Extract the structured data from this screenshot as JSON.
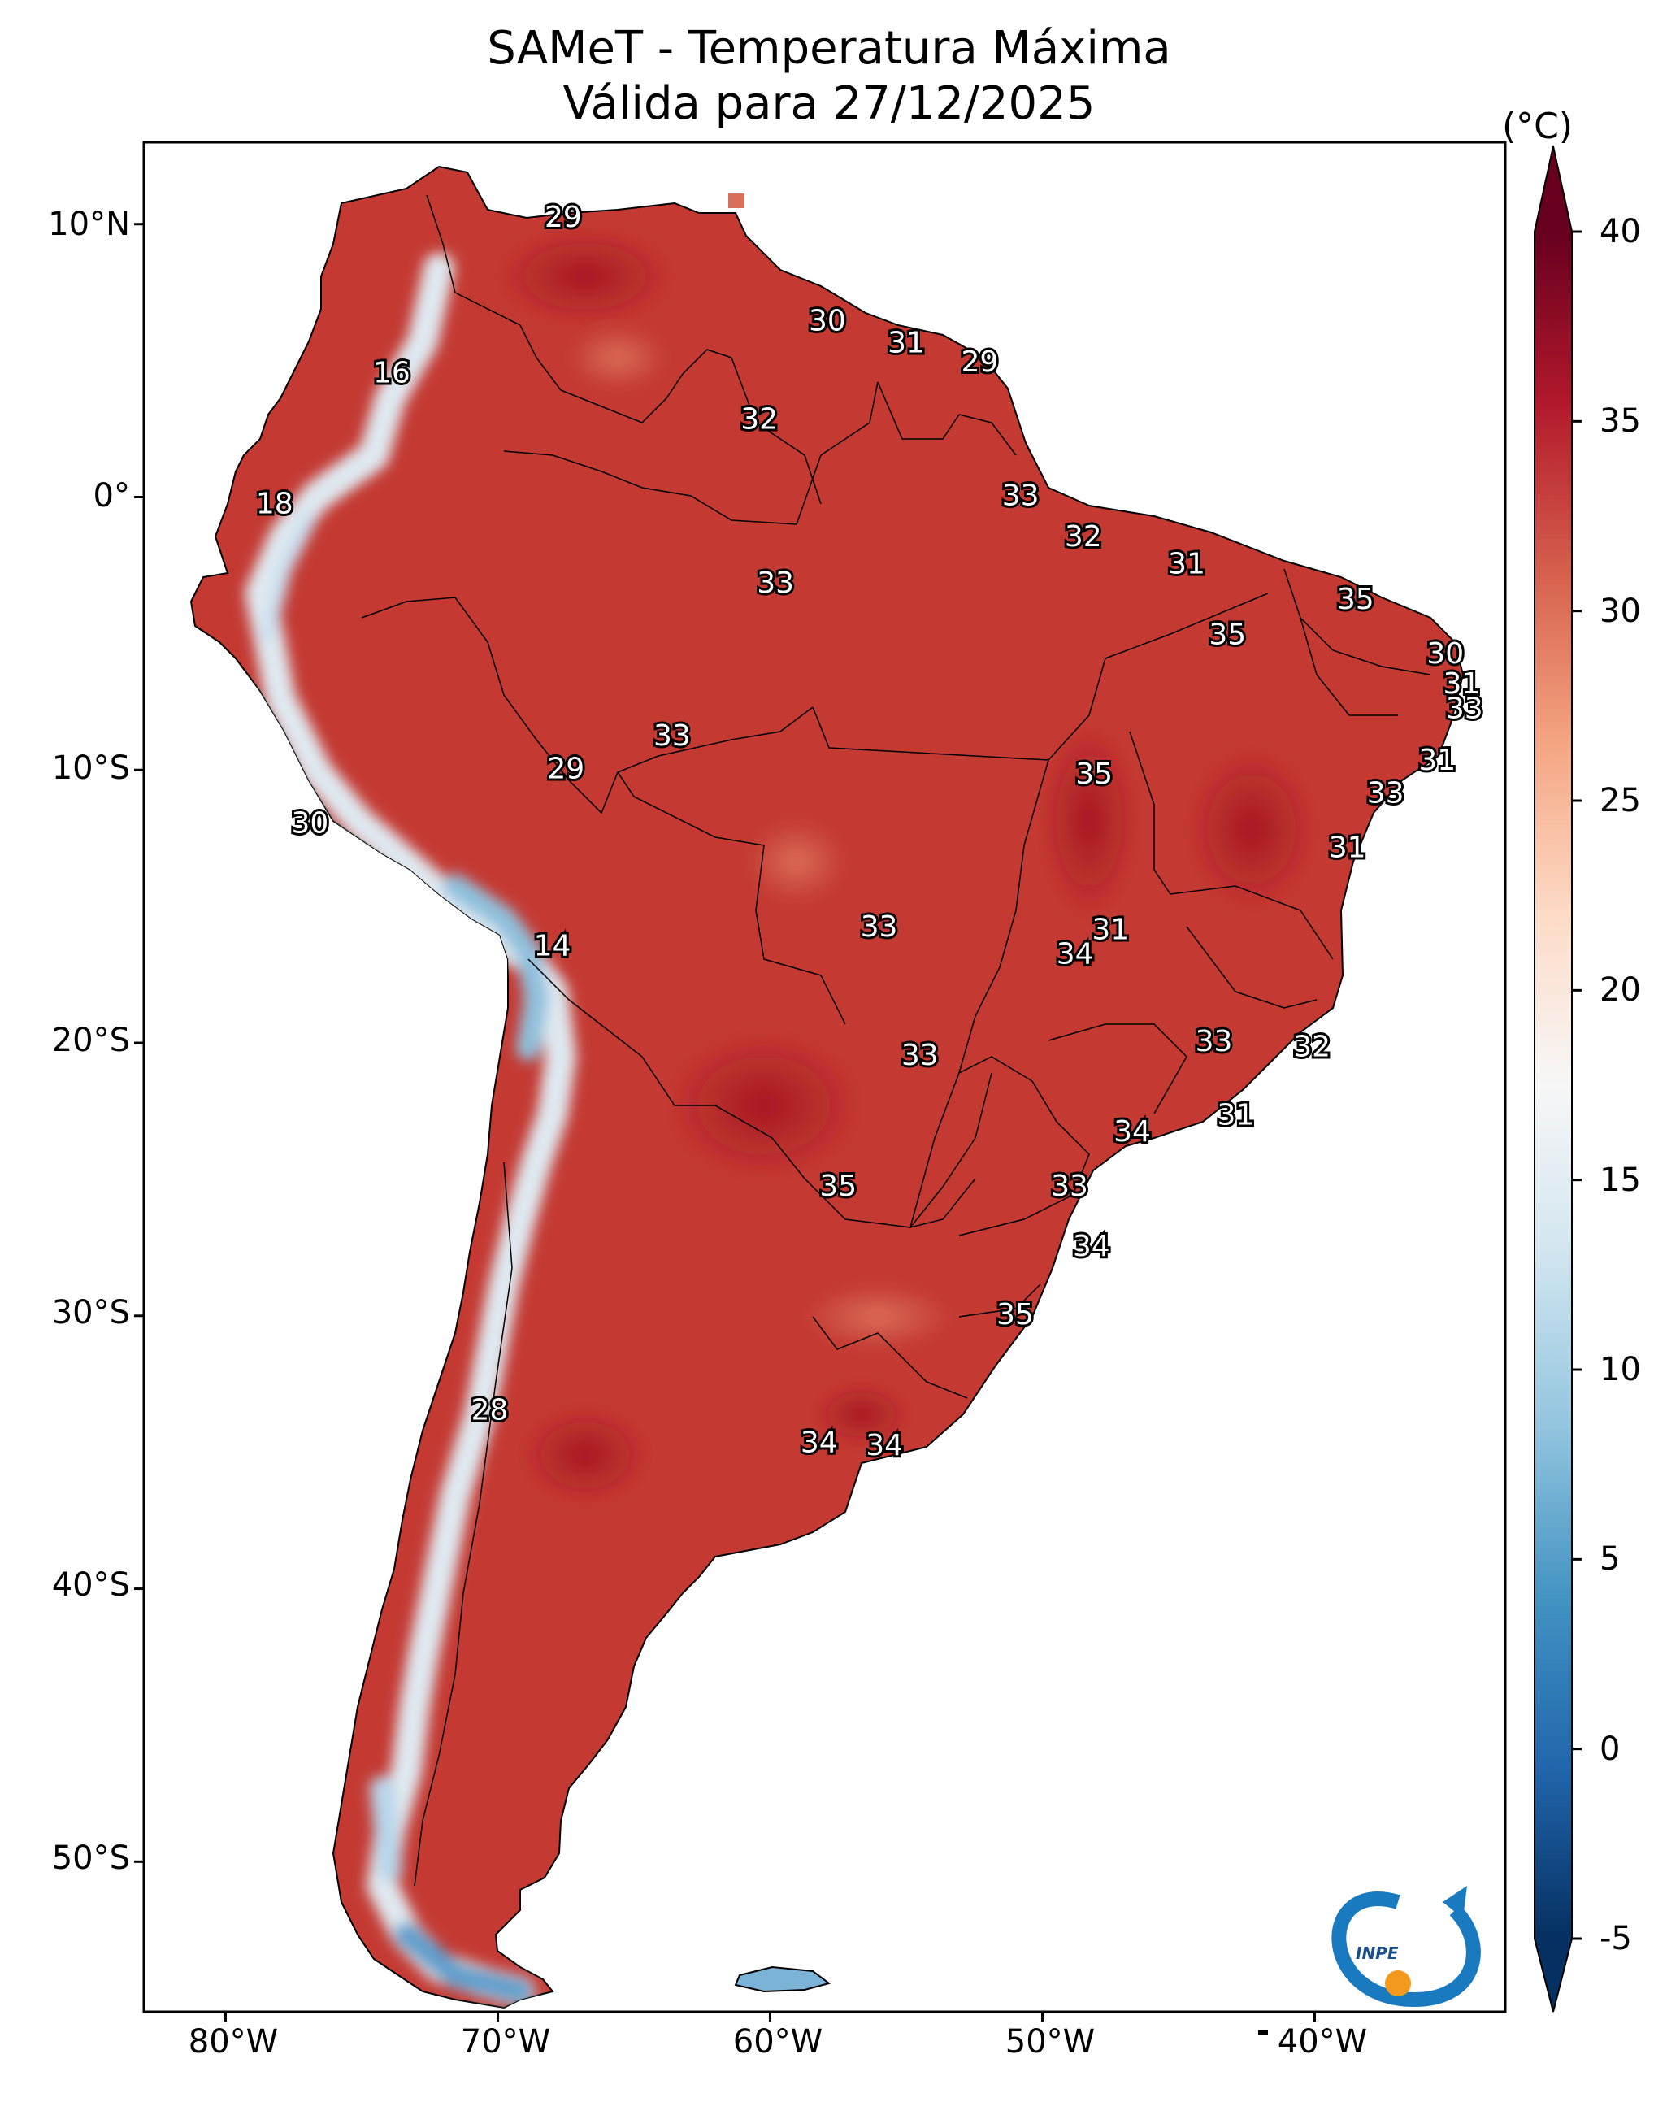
{
  "title": {
    "line1": "SAMeT - Temperatura Máxima",
    "line2": "Válida para 27/12/2025"
  },
  "map": {
    "lat_ticks": [
      "10°N",
      "0°",
      "10°S",
      "20°S",
      "30°S",
      "40°S",
      "50°S"
    ],
    "lon_ticks": [
      "80°W",
      "70°W",
      "60°W",
      "50°W",
      "40°W"
    ],
    "lon_range": [
      -83,
      -33
    ],
    "lat_range": [
      -55.5,
      13
    ]
  },
  "colorbar": {
    "unit": "(°C)",
    "ticks": [
      "40",
      "35",
      "30",
      "25",
      "20",
      "15",
      "10",
      "5",
      "0",
      "-5"
    ],
    "min": -5,
    "max": 40,
    "colors": [
      "#053061",
      "#2166ac",
      "#4393c3",
      "#92c5de",
      "#d1e5f0",
      "#f7f7f7",
      "#fddbc7",
      "#f4a582",
      "#d6604d",
      "#b2182b",
      "#67001f"
    ]
  },
  "labels": [
    {
      "v": "29",
      "lon": -67.6,
      "lat": 10.2
    },
    {
      "v": "30",
      "lon": -57.9,
      "lat": 6.4
    },
    {
      "v": "31",
      "lon": -55.0,
      "lat": 5.6
    },
    {
      "v": "29",
      "lon": -52.3,
      "lat": 4.9
    },
    {
      "v": "16",
      "lon": -73.9,
      "lat": 4.5
    },
    {
      "v": "32",
      "lon": -60.4,
      "lat": 2.8
    },
    {
      "v": "18",
      "lon": -78.2,
      "lat": -0.3
    },
    {
      "v": "33",
      "lon": -50.8,
      "lat": 0.0
    },
    {
      "v": "32",
      "lon": -48.5,
      "lat": -1.5
    },
    {
      "v": "31",
      "lon": -44.7,
      "lat": -2.5
    },
    {
      "v": "33",
      "lon": -59.8,
      "lat": -3.2
    },
    {
      "v": "35",
      "lon": -38.5,
      "lat": -3.8
    },
    {
      "v": "35",
      "lon": -43.2,
      "lat": -5.1
    },
    {
      "v": "30",
      "lon": -35.2,
      "lat": -5.8
    },
    {
      "v": "31",
      "lon": -34.6,
      "lat": -6.9
    },
    {
      "v": "33",
      "lon": -34.5,
      "lat": -7.8
    },
    {
      "v": "33",
      "lon": -63.6,
      "lat": -8.8
    },
    {
      "v": "29",
      "lon": -67.5,
      "lat": -10.0
    },
    {
      "v": "31",
      "lon": -35.5,
      "lat": -9.7
    },
    {
      "v": "35",
      "lon": -48.1,
      "lat": -10.2
    },
    {
      "v": "33",
      "lon": -37.4,
      "lat": -10.9
    },
    {
      "v": "30",
      "lon": -76.9,
      "lat": -12.0
    },
    {
      "v": "31",
      "lon": -38.8,
      "lat": -12.9
    },
    {
      "v": "33",
      "lon": -56.0,
      "lat": -15.8
    },
    {
      "v": "31",
      "lon": -47.5,
      "lat": -15.9
    },
    {
      "v": "34",
      "lon": -48.8,
      "lat": -16.8
    },
    {
      "v": "14",
      "lon": -68.0,
      "lat": -16.5
    },
    {
      "v": "33",
      "lon": -43.7,
      "lat": -20.0
    },
    {
      "v": "32",
      "lon": -40.1,
      "lat": -20.2
    },
    {
      "v": "33",
      "lon": -54.5,
      "lat": -20.5
    },
    {
      "v": "31",
      "lon": -42.9,
      "lat": -22.7
    },
    {
      "v": "34",
      "lon": -46.7,
      "lat": -23.3
    },
    {
      "v": "35",
      "lon": -57.5,
      "lat": -25.3
    },
    {
      "v": "33",
      "lon": -49.0,
      "lat": -25.3
    },
    {
      "v": "34",
      "lon": -48.2,
      "lat": -27.5
    },
    {
      "v": "35",
      "lon": -51.0,
      "lat": -30.0
    },
    {
      "v": "28",
      "lon": -70.3,
      "lat": -33.5
    },
    {
      "v": "34",
      "lon": -58.2,
      "lat": -34.7
    },
    {
      "v": "34",
      "lon": -55.8,
      "lat": -34.8
    }
  ]
}
